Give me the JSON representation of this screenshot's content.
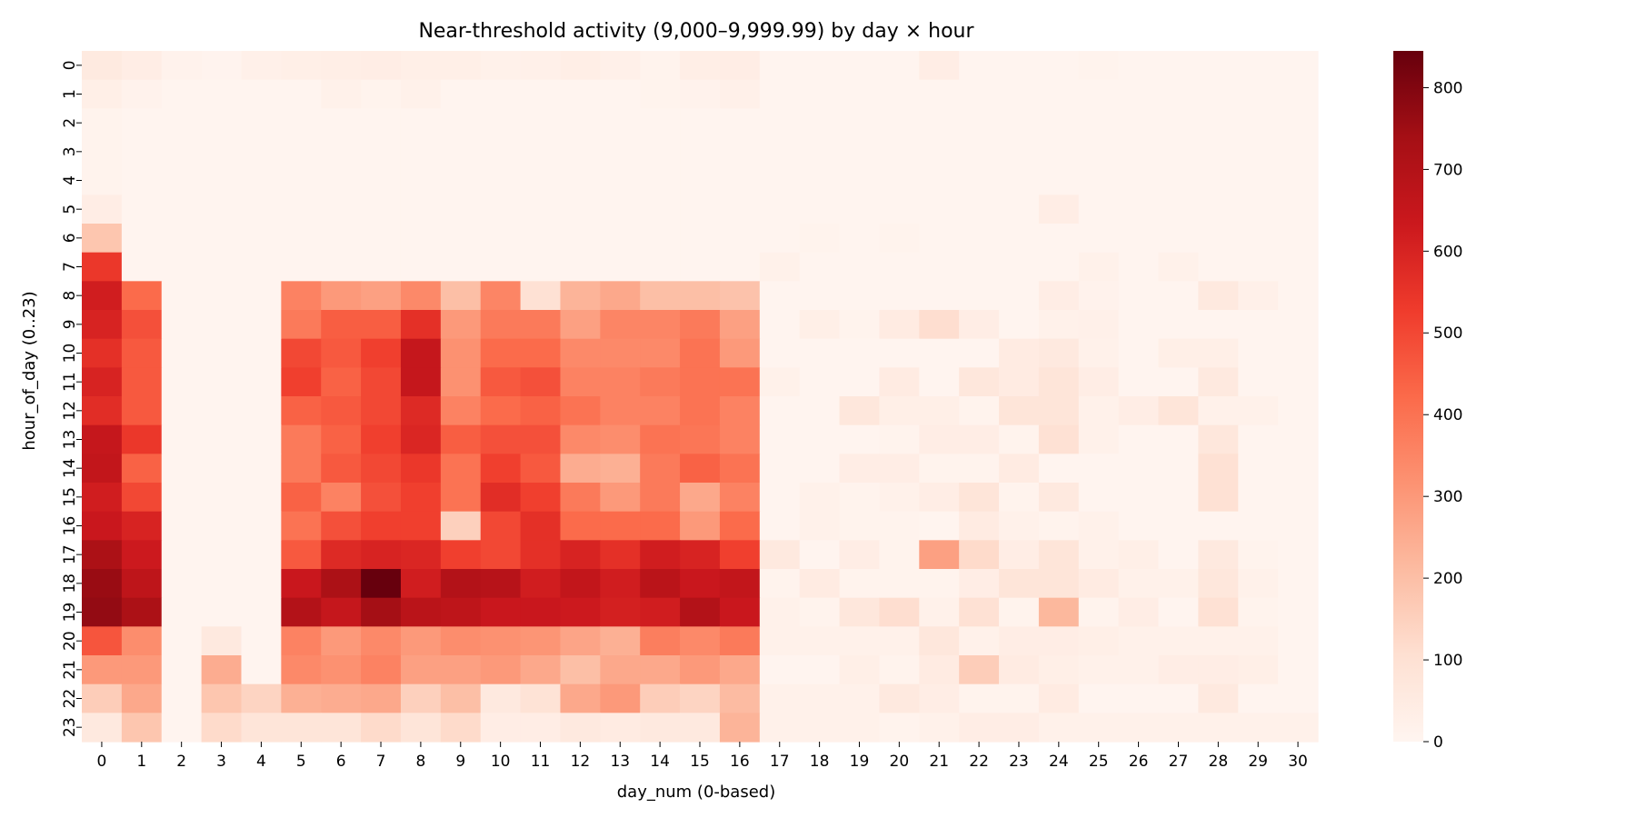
{
  "chart_data": {
    "type": "heatmap",
    "title": "Near-threshold activity (9,000–9,999.99) by day × hour",
    "xlabel": "day_num (0-based)",
    "ylabel": "hour_of_day (0..23)",
    "x_categories": [
      "0",
      "1",
      "2",
      "3",
      "4",
      "5",
      "6",
      "7",
      "8",
      "9",
      "10",
      "11",
      "12",
      "13",
      "14",
      "15",
      "16",
      "17",
      "18",
      "19",
      "20",
      "21",
      "22",
      "23",
      "24",
      "25",
      "26",
      "27",
      "28",
      "29",
      "30"
    ],
    "y_categories": [
      "0",
      "1",
      "2",
      "3",
      "4",
      "5",
      "6",
      "7",
      "8",
      "9",
      "10",
      "11",
      "12",
      "13",
      "14",
      "15",
      "16",
      "17",
      "18",
      "19",
      "20",
      "21",
      "22",
      "23"
    ],
    "colormap": "Reds",
    "vmin": 0,
    "vmax": 845,
    "colorbar_ticks": [
      0,
      100,
      200,
      300,
      400,
      500,
      600,
      700,
      800
    ],
    "values": [
      [
        55,
        40,
        15,
        8,
        25,
        30,
        35,
        40,
        30,
        30,
        20,
        25,
        35,
        25,
        12,
        35,
        40,
        5,
        5,
        5,
        5,
        40,
        5,
        5,
        5,
        10,
        5,
        5,
        5,
        5,
        5
      ],
      [
        30,
        15,
        5,
        5,
        5,
        5,
        20,
        12,
        20,
        5,
        5,
        5,
        5,
        5,
        10,
        15,
        25,
        5,
        5,
        5,
        5,
        5,
        5,
        5,
        5,
        5,
        5,
        5,
        5,
        5,
        5
      ],
      [
        10,
        5,
        5,
        5,
        5,
        5,
        5,
        5,
        5,
        5,
        5,
        5,
        5,
        5,
        5,
        5,
        5,
        5,
        5,
        5,
        5,
        5,
        5,
        5,
        5,
        5,
        5,
        5,
        5,
        5,
        5
      ],
      [
        10,
        5,
        5,
        5,
        5,
        5,
        5,
        5,
        5,
        5,
        5,
        5,
        5,
        5,
        5,
        5,
        5,
        5,
        5,
        5,
        5,
        5,
        5,
        5,
        5,
        5,
        5,
        5,
        5,
        5,
        5
      ],
      [
        10,
        5,
        5,
        5,
        5,
        5,
        5,
        5,
        5,
        5,
        5,
        5,
        5,
        5,
        5,
        5,
        5,
        5,
        5,
        5,
        5,
        5,
        5,
        5,
        5,
        5,
        5,
        5,
        5,
        5,
        5
      ],
      [
        40,
        5,
        5,
        5,
        5,
        5,
        5,
        5,
        5,
        5,
        5,
        5,
        5,
        5,
        5,
        5,
        5,
        5,
        5,
        5,
        5,
        5,
        5,
        5,
        40,
        5,
        5,
        5,
        5,
        5,
        5
      ],
      [
        180,
        5,
        5,
        5,
        5,
        5,
        5,
        5,
        5,
        5,
        5,
        5,
        5,
        5,
        5,
        5,
        5,
        5,
        10,
        5,
        10,
        5,
        5,
        5,
        5,
        5,
        5,
        5,
        5,
        5,
        5
      ],
      [
        540,
        5,
        5,
        5,
        5,
        5,
        5,
        5,
        5,
        5,
        5,
        5,
        5,
        5,
        5,
        5,
        5,
        20,
        5,
        5,
        5,
        5,
        5,
        5,
        5,
        20,
        5,
        20,
        5,
        5,
        5
      ],
      [
        620,
        420,
        5,
        5,
        5,
        360,
        300,
        280,
        340,
        200,
        350,
        100,
        230,
        260,
        200,
        200,
        190,
        5,
        5,
        5,
        5,
        5,
        5,
        5,
        40,
        15,
        5,
        5,
        60,
        25,
        5
      ],
      [
        600,
        480,
        5,
        5,
        5,
        380,
        450,
        450,
        560,
        300,
        380,
        380,
        280,
        350,
        350,
        380,
        280,
        5,
        30,
        10,
        50,
        110,
        40,
        5,
        20,
        25,
        5,
        5,
        5,
        5,
        5
      ],
      [
        560,
        460,
        5,
        5,
        5,
        500,
        460,
        520,
        650,
        320,
        420,
        420,
        340,
        340,
        340,
        400,
        300,
        5,
        5,
        5,
        5,
        5,
        5,
        50,
        60,
        20,
        5,
        30,
        30,
        5,
        5
      ],
      [
        600,
        460,
        5,
        5,
        5,
        520,
        440,
        500,
        650,
        320,
        460,
        480,
        360,
        360,
        380,
        400,
        400,
        20,
        5,
        5,
        50,
        5,
        70,
        50,
        80,
        40,
        5,
        5,
        60,
        5,
        5
      ],
      [
        570,
        460,
        5,
        5,
        5,
        440,
        460,
        500,
        580,
        360,
        420,
        440,
        400,
        360,
        360,
        400,
        360,
        5,
        5,
        70,
        30,
        30,
        10,
        80,
        80,
        20,
        40,
        80,
        20,
        20,
        5
      ],
      [
        650,
        540,
        5,
        5,
        5,
        380,
        440,
        520,
        590,
        450,
        480,
        480,
        340,
        330,
        400,
        390,
        360,
        5,
        5,
        5,
        10,
        40,
        40,
        10,
        100,
        20,
        5,
        5,
        70,
        5,
        5
      ],
      [
        660,
        440,
        5,
        5,
        5,
        380,
        460,
        500,
        540,
        400,
        520,
        460,
        250,
        240,
        380,
        440,
        400,
        5,
        5,
        40,
        40,
        10,
        10,
        50,
        5,
        5,
        5,
        5,
        100,
        5,
        5
      ],
      [
        620,
        500,
        5,
        5,
        5,
        440,
        360,
        480,
        520,
        400,
        570,
        520,
        380,
        300,
        380,
        260,
        360,
        5,
        20,
        10,
        20,
        40,
        80,
        10,
        60,
        5,
        5,
        5,
        100,
        5,
        5
      ],
      [
        640,
        600,
        5,
        5,
        5,
        400,
        480,
        520,
        520,
        150,
        500,
        560,
        420,
        420,
        420,
        300,
        420,
        5,
        20,
        10,
        10,
        5,
        50,
        20,
        10,
        20,
        5,
        5,
        5,
        5,
        5
      ],
      [
        720,
        630,
        5,
        5,
        5,
        460,
        580,
        600,
        590,
        520,
        500,
        560,
        600,
        560,
        620,
        600,
        520,
        60,
        5,
        40,
        10,
        280,
        120,
        40,
        80,
        20,
        30,
        5,
        60,
        10,
        5
      ],
      [
        760,
        670,
        5,
        5,
        5,
        640,
        720,
        845,
        620,
        700,
        690,
        620,
        660,
        620,
        680,
        640,
        660,
        10,
        50,
        10,
        10,
        10,
        40,
        80,
        80,
        50,
        20,
        20,
        70,
        20,
        5
      ],
      [
        770,
        720,
        5,
        5,
        5,
        700,
        650,
        740,
        680,
        670,
        640,
        640,
        630,
        610,
        620,
        700,
        640,
        20,
        10,
        70,
        110,
        20,
        100,
        10,
        220,
        10,
        40,
        5,
        100,
        10,
        5
      ],
      [
        470,
        330,
        5,
        60,
        5,
        360,
        300,
        340,
        300,
        330,
        320,
        310,
        270,
        240,
        370,
        340,
        380,
        20,
        20,
        20,
        20,
        70,
        20,
        40,
        40,
        30,
        20,
        20,
        20,
        20,
        5
      ],
      [
        300,
        300,
        5,
        250,
        5,
        340,
        320,
        360,
        280,
        280,
        300,
        260,
        200,
        260,
        260,
        300,
        260,
        5,
        5,
        30,
        10,
        50,
        160,
        50,
        30,
        20,
        20,
        40,
        40,
        30,
        5
      ],
      [
        160,
        260,
        5,
        180,
        140,
        240,
        250,
        260,
        150,
        200,
        60,
        90,
        260,
        300,
        160,
        140,
        210,
        20,
        20,
        20,
        60,
        40,
        10,
        10,
        50,
        5,
        5,
        5,
        60,
        5,
        5
      ],
      [
        60,
        180,
        5,
        120,
        80,
        80,
        80,
        120,
        80,
        120,
        40,
        40,
        60,
        50,
        60,
        60,
        230,
        20,
        20,
        20,
        10,
        20,
        40,
        40,
        20,
        20,
        20,
        20,
        20,
        20,
        20
      ]
    ]
  }
}
